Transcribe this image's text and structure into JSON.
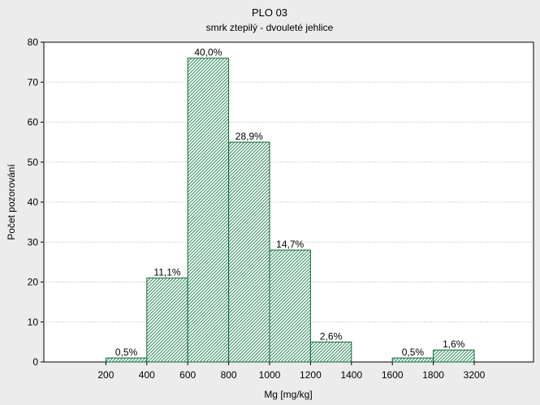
{
  "chart_data": {
    "type": "bar",
    "title": "PLO 03",
    "subtitle": "smrk ztepilý - dvouleté jehlice",
    "xlabel": "Mg [mg/kg]",
    "ylabel": "Počet pozorování",
    "ylim": [
      0,
      80
    ],
    "yticks": [
      0,
      10,
      20,
      30,
      40,
      50,
      60,
      70,
      80
    ],
    "xticks": [
      "200",
      "400",
      "600",
      "800",
      "1000",
      "1200",
      "1400",
      "1600",
      "1800",
      "3200"
    ],
    "grid": true,
    "bars": [
      {
        "from": "200",
        "to": "400",
        "value": 1,
        "label": "0,5%"
      },
      {
        "from": "400",
        "to": "600",
        "value": 21,
        "label": "11,1%"
      },
      {
        "from": "600",
        "to": "800",
        "value": 76,
        "label": "40,0%"
      },
      {
        "from": "800",
        "to": "1000",
        "value": 55,
        "label": "28,9%"
      },
      {
        "from": "1000",
        "to": "1200",
        "value": 28,
        "label": "14,7%"
      },
      {
        "from": "1200",
        "to": "1400",
        "value": 5,
        "label": "2,6%"
      },
      {
        "from": "1400",
        "to": "1600",
        "value": 0,
        "label": ""
      },
      {
        "from": "1600",
        "to": "1800",
        "value": 1,
        "label": "0,5%"
      },
      {
        "from": "1800",
        "to": "3200",
        "value": 3,
        "label": "1,6%"
      }
    ],
    "colors": {
      "bar_stroke": "#0a6a3c",
      "hatch": "#2f8a5a",
      "bar_fill": "#ffffff",
      "background": "#ececec",
      "grid": "#b8b8b8"
    }
  }
}
